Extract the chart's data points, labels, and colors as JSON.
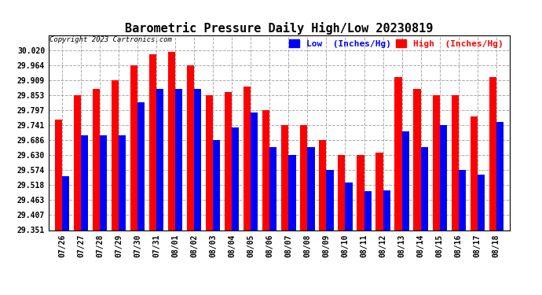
{
  "title": "Barometric Pressure Daily High/Low 20230819",
  "copyright": "Copyright 2023 Cartronics.com",
  "legend_low": "Low  (Inches/Hg)",
  "legend_high": "High  (Inches/Hg)",
  "dates": [
    "07/26",
    "07/27",
    "07/28",
    "07/29",
    "07/30",
    "07/31",
    "08/01",
    "08/02",
    "08/03",
    "08/04",
    "08/05",
    "08/06",
    "08/07",
    "08/08",
    "08/09",
    "08/10",
    "08/11",
    "08/12",
    "08/13",
    "08/14",
    "08/15",
    "08/16",
    "08/17",
    "08/18"
  ],
  "high_values": [
    29.762,
    29.853,
    29.876,
    29.909,
    29.964,
    30.005,
    30.015,
    29.964,
    29.853,
    29.864,
    29.886,
    29.797,
    29.741,
    29.741,
    29.686,
    29.63,
    29.63,
    29.641,
    29.92,
    29.876,
    29.853,
    29.853,
    29.775,
    29.92
  ],
  "low_values": [
    29.551,
    29.704,
    29.704,
    29.704,
    29.826,
    29.876,
    29.876,
    29.876,
    29.686,
    29.734,
    29.79,
    29.66,
    29.63,
    29.66,
    29.574,
    29.529,
    29.497,
    29.5,
    29.72,
    29.66,
    29.741,
    29.574,
    29.557,
    29.755
  ],
  "ylim_min": 29.351,
  "ylim_max": 30.076,
  "yticks": [
    29.351,
    29.407,
    29.463,
    29.518,
    29.574,
    29.63,
    29.686,
    29.741,
    29.797,
    29.853,
    29.909,
    29.964,
    30.02
  ],
  "bar_color_high": "#ff0000",
  "bar_color_low": "#0000ff",
  "background_color": "#ffffff",
  "grid_color": "#aaaaaa",
  "title_fontsize": 11,
  "legend_fontsize": 8,
  "tick_fontsize": 7,
  "copyright_fontsize": 6.5
}
